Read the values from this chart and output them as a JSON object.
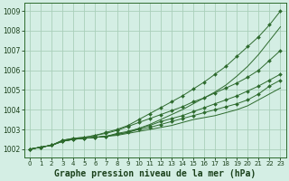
{
  "x": [
    0,
    1,
    2,
    3,
    4,
    5,
    6,
    7,
    8,
    9,
    10,
    11,
    12,
    13,
    14,
    15,
    16,
    17,
    18,
    19,
    20,
    21,
    22,
    23
  ],
  "series": [
    {
      "y": [
        1002.0,
        1002.1,
        1002.2,
        1002.4,
        1002.5,
        1002.55,
        1002.6,
        1002.65,
        1002.7,
        1002.8,
        1002.9,
        1003.0,
        1003.1,
        1003.2,
        1003.35,
        1003.5,
        1003.6,
        1003.7,
        1003.85,
        1004.0,
        1004.2,
        1004.5,
        1004.8,
        1005.1
      ],
      "markers": false
    },
    {
      "y": [
        1002.0,
        1002.1,
        1002.2,
        1002.4,
        1002.5,
        1002.55,
        1002.6,
        1002.65,
        1002.75,
        1002.85,
        1003.0,
        1003.1,
        1003.25,
        1003.4,
        1003.55,
        1003.7,
        1003.85,
        1004.0,
        1004.15,
        1004.3,
        1004.5,
        1004.8,
        1005.2,
        1005.5
      ],
      "markers": true
    },
    {
      "y": [
        1002.0,
        1002.1,
        1002.2,
        1002.4,
        1002.5,
        1002.55,
        1002.6,
        1002.65,
        1002.8,
        1002.9,
        1003.05,
        1003.2,
        1003.4,
        1003.55,
        1003.7,
        1003.9,
        1004.1,
        1004.3,
        1004.5,
        1004.7,
        1004.95,
        1005.2,
        1005.5,
        1005.8
      ],
      "markers": true
    },
    {
      "y": [
        1002.0,
        1002.1,
        1002.2,
        1002.45,
        1002.55,
        1002.6,
        1002.7,
        1002.8,
        1002.95,
        1003.15,
        1003.35,
        1003.55,
        1003.75,
        1003.95,
        1004.15,
        1004.4,
        1004.6,
        1004.85,
        1005.1,
        1005.35,
        1005.65,
        1006.0,
        1006.5,
        1007.0
      ],
      "markers": true
    },
    {
      "y": [
        1002.0,
        1002.1,
        1002.2,
        1002.4,
        1002.5,
        1002.55,
        1002.6,
        1002.65,
        1002.75,
        1002.85,
        1003.05,
        1003.25,
        1003.5,
        1003.75,
        1004.0,
        1004.3,
        1004.6,
        1004.9,
        1005.25,
        1005.7,
        1006.2,
        1006.8,
        1007.5,
        1008.2
      ],
      "markers": false
    },
    {
      "y": [
        1002.0,
        1002.1,
        1002.2,
        1002.45,
        1002.55,
        1002.6,
        1002.7,
        1002.85,
        1003.0,
        1003.2,
        1003.5,
        1003.8,
        1004.1,
        1004.4,
        1004.7,
        1005.05,
        1005.4,
        1005.8,
        1006.2,
        1006.7,
        1007.2,
        1007.7,
        1008.3,
        1009.0
      ],
      "markers": true
    }
  ],
  "line_color": "#2d6a2d",
  "marker_color": "#2d6a2d",
  "bg_color": "#d4eee4",
  "grid_color": "#aacfba",
  "title": "Graphe pression niveau de la mer (hPa)",
  "ylim": [
    1001.6,
    1009.4
  ],
  "yticks": [
    1002,
    1003,
    1004,
    1005,
    1006,
    1007,
    1008,
    1009
  ],
  "title_fontsize": 7.0
}
